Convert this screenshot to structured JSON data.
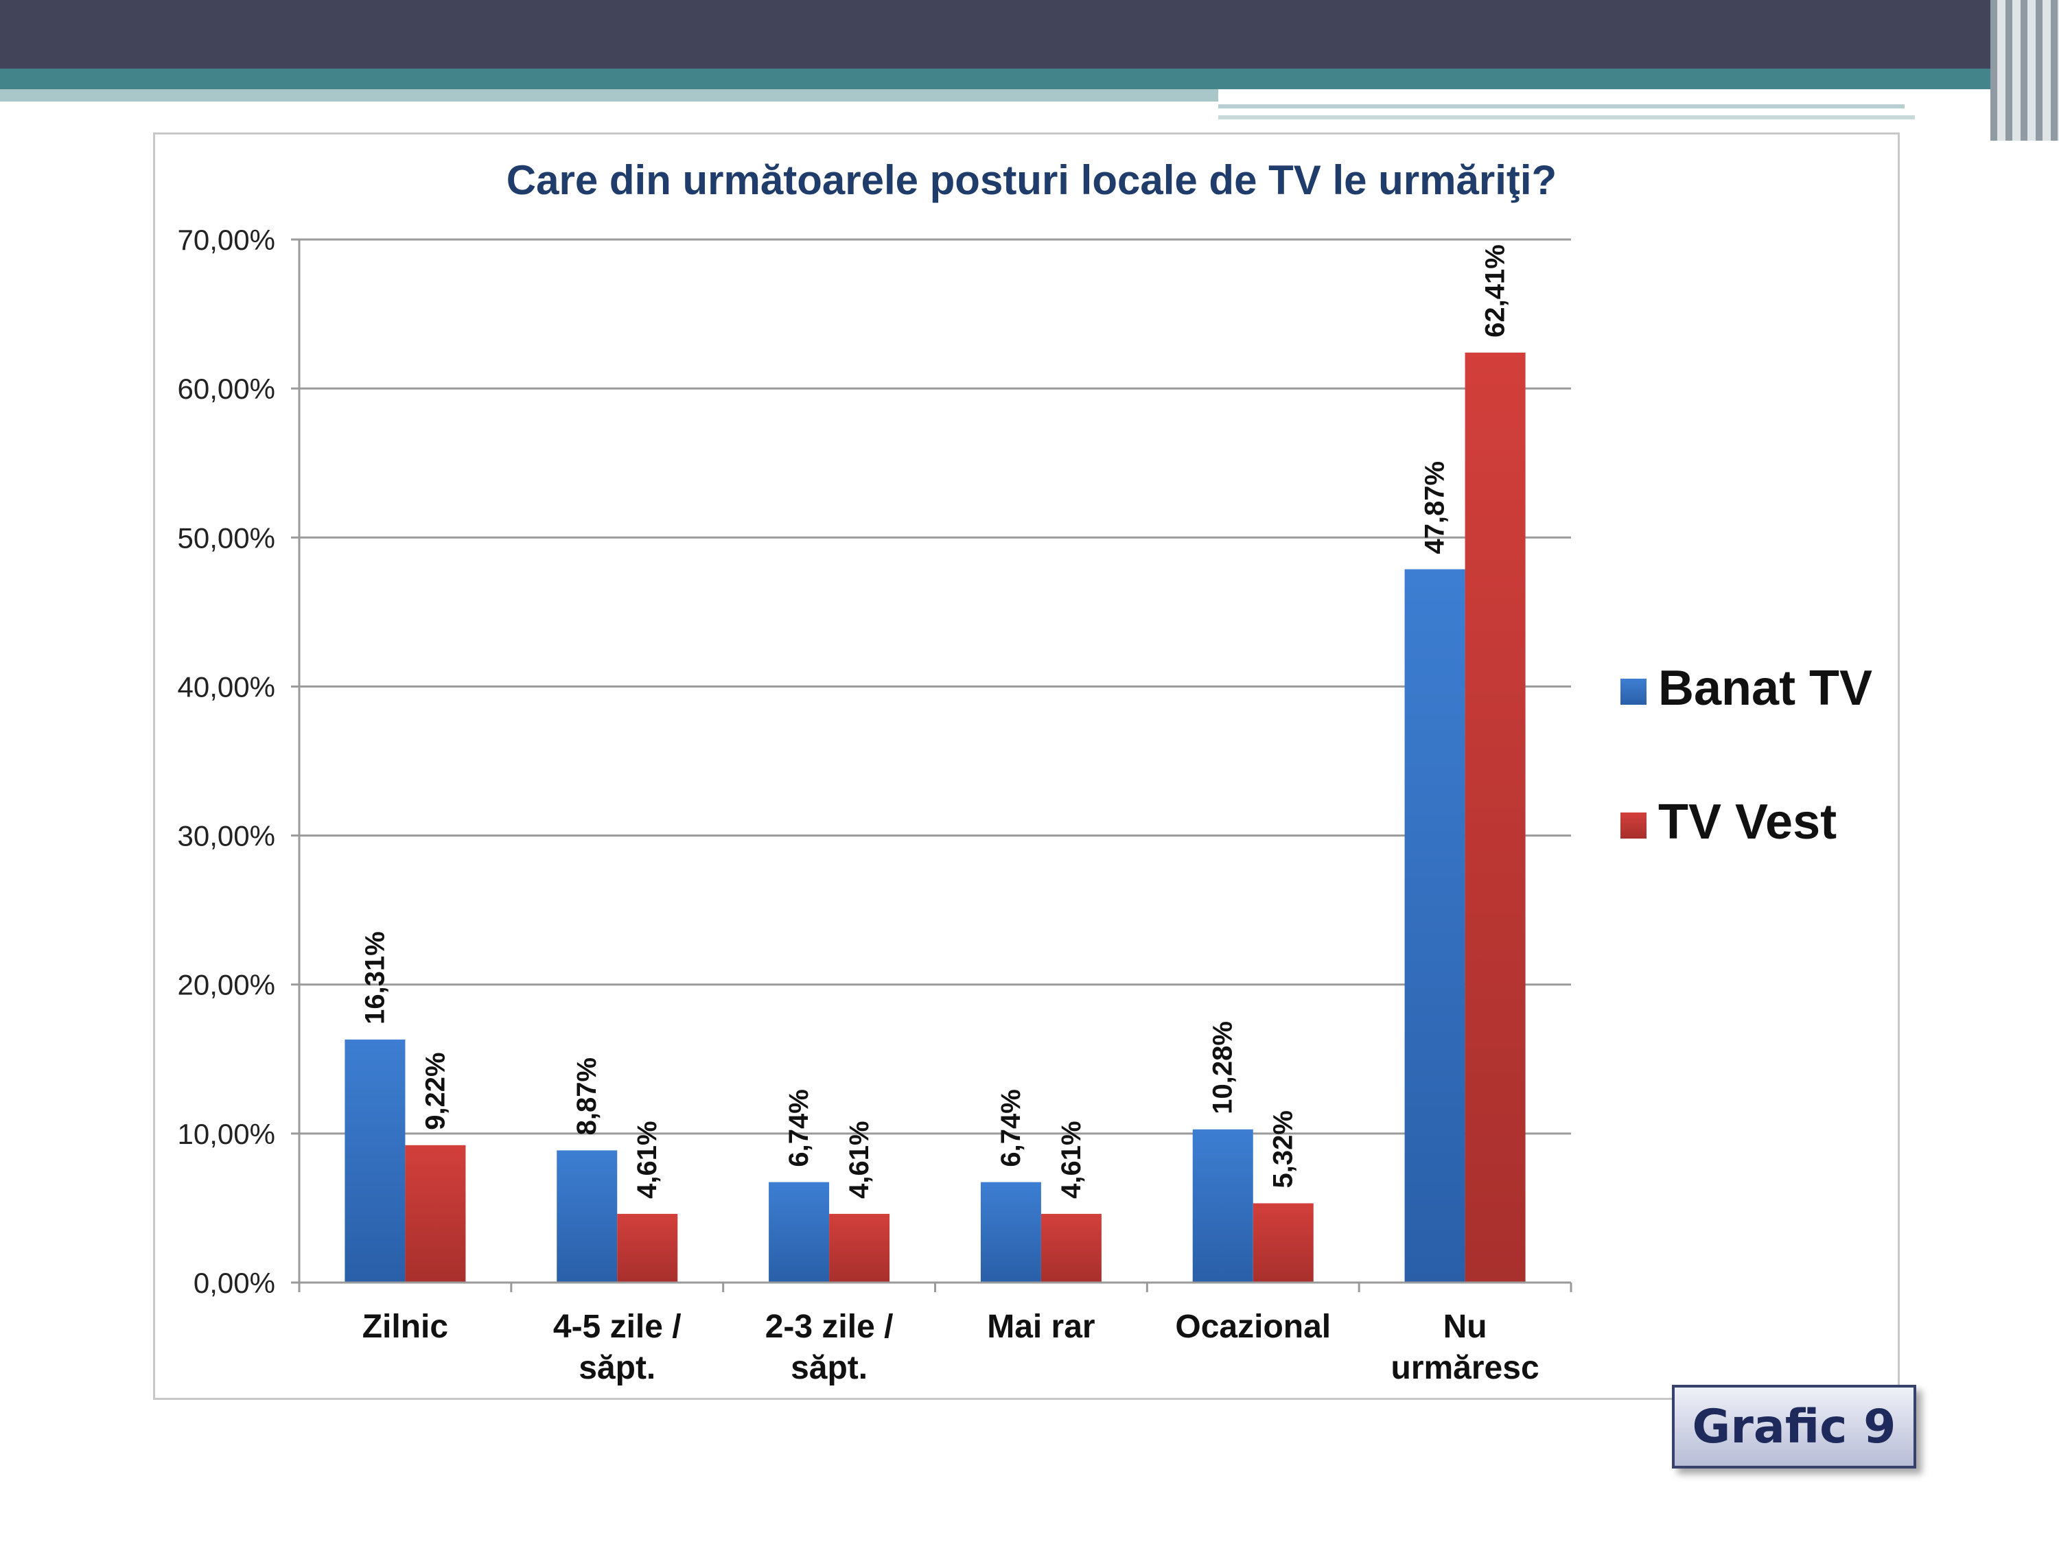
{
  "colors": {
    "banat_tv": "#3e79c6",
    "tv_vest": "#c63a3a",
    "title": "#1f3c6b",
    "grid": "#9a9a9a"
  },
  "badge": {
    "label": "Grafic 9"
  },
  "chart_data": {
    "type": "bar",
    "title": "Care din următoarele posturi locale de TV le urmăriţi?",
    "categories": [
      [
        "Zilnic"
      ],
      [
        "4-5 zile /",
        "săpt."
      ],
      [
        "2-3 zile /",
        "săpt."
      ],
      [
        "Mai rar"
      ],
      [
        "Ocazional"
      ],
      [
        "Nu",
        "urmăresc"
      ]
    ],
    "series": [
      {
        "name": "Banat TV",
        "values": [
          16.31,
          8.87,
          6.74,
          6.74,
          10.28,
          47.87
        ],
        "labels": [
          "16,31%",
          "8,87%",
          "6,74%",
          "6,74%",
          "10,28%",
          "47,87%"
        ]
      },
      {
        "name": "TV Vest",
        "values": [
          9.22,
          4.61,
          4.61,
          4.61,
          5.32,
          62.41
        ],
        "labels": [
          "9,22%",
          "4,61%",
          "4,61%",
          "4,61%",
          "5,32%",
          "62,41%"
        ]
      }
    ],
    "ylim": [
      0,
      70
    ],
    "yticks": [
      0,
      10,
      20,
      30,
      40,
      50,
      60,
      70
    ],
    "ytick_labels": [
      "0,00%",
      "10,00%",
      "20,00%",
      "30,00%",
      "40,00%",
      "50,00%",
      "60,00%",
      "70,00%"
    ],
    "grid": true,
    "legend": "right"
  }
}
